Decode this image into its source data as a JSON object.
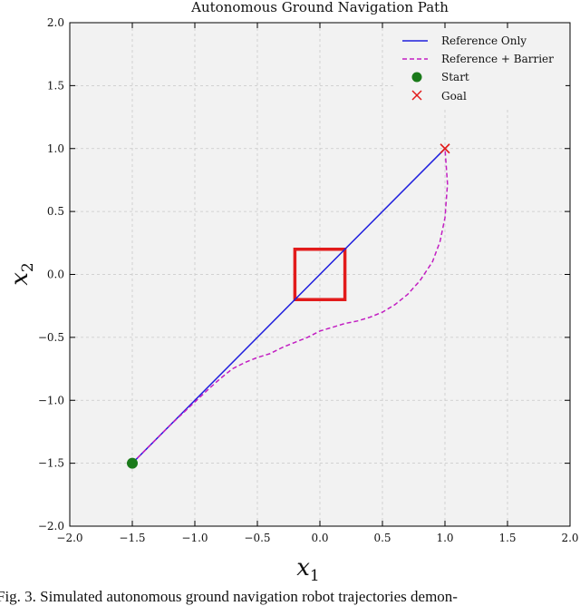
{
  "chart_data": {
    "type": "line",
    "title": "Autonomous Ground Navigation Path",
    "xlabel": "x",
    "xlabel_sub": "1",
    "ylabel": "x",
    "ylabel_sub": "2",
    "xlim": [
      -2.0,
      2.0
    ],
    "ylim": [
      -2.0,
      2.0
    ],
    "xticks": [
      "−2.0",
      "−1.5",
      "−1.0",
      "−0.5",
      "0.0",
      "0.5",
      "1.0",
      "1.5",
      "2.0"
    ],
    "yticks": [
      "−2.0",
      "−1.5",
      "−1.0",
      "−0.5",
      "0.0",
      "0.5",
      "1.0",
      "1.5",
      "2.0"
    ],
    "grid": true,
    "legend_position": "top-right",
    "series": [
      {
        "name": "Reference Only",
        "style": "solid",
        "color": "#1f1fdd",
        "x": [
          -1.5,
          1.0
        ],
        "y": [
          -1.5,
          1.0
        ]
      },
      {
        "name": "Reference + Barrier",
        "style": "dashed",
        "color": "#c21ec2",
        "x": [
          -1.5,
          -1.2,
          -0.9,
          -0.8,
          -0.7,
          -0.6,
          -0.5,
          -0.4,
          -0.3,
          -0.2,
          -0.1,
          0.0,
          0.1,
          0.2,
          0.3,
          0.4,
          0.5,
          0.6,
          0.7,
          0.8,
          0.9,
          0.96,
          1.0,
          1.02,
          1.0
        ],
        "y": [
          -1.5,
          -1.2,
          -0.92,
          -0.83,
          -0.75,
          -0.7,
          -0.66,
          -0.63,
          -0.58,
          -0.54,
          -0.5,
          -0.45,
          -0.42,
          -0.39,
          -0.37,
          -0.34,
          -0.3,
          -0.24,
          -0.16,
          -0.05,
          0.1,
          0.26,
          0.45,
          0.72,
          1.0
        ]
      }
    ],
    "markers": [
      {
        "name": "Start",
        "shape": "circle",
        "color": "#1a7a1a",
        "x": -1.5,
        "y": -1.5
      },
      {
        "name": "Goal",
        "shape": "x",
        "color": "#e21b1b",
        "x": 1.0,
        "y": 1.0
      }
    ],
    "obstacle": {
      "shape": "square",
      "color": "#e21b1b",
      "x_range": [
        -0.2,
        0.2
      ],
      "y_range": [
        -0.2,
        0.2
      ]
    }
  },
  "caption": "Fig. 3.   Simulated autonomous ground navigation robot trajectories demon-"
}
